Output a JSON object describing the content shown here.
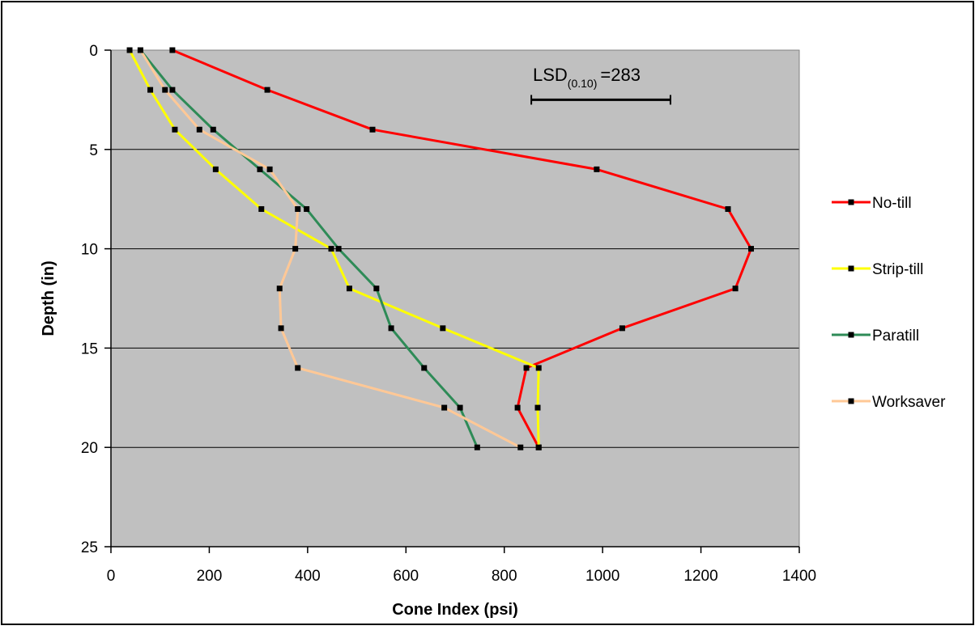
{
  "chart_data": {
    "type": "line",
    "title": "",
    "xlabel": "Cone Index (psi)",
    "ylabel": "Depth (in)",
    "xlim": [
      0,
      1400
    ],
    "ylim": [
      0,
      25
    ],
    "y_inverted": true,
    "x_ticks": [
      0,
      200,
      400,
      600,
      800,
      1000,
      1200,
      1400
    ],
    "y_ticks": [
      0,
      5,
      10,
      15,
      20,
      25
    ],
    "grid": "horizontal",
    "plot_background": "#c0c0c0",
    "legend_position": "right",
    "series": [
      {
        "name": "No-till",
        "color": "#ff0000",
        "points": [
          [
            125,
            0
          ],
          [
            318,
            2
          ],
          [
            532,
            4
          ],
          [
            988,
            6
          ],
          [
            1255,
            8
          ],
          [
            1302,
            10
          ],
          [
            1270,
            12
          ],
          [
            1040,
            14
          ],
          [
            845,
            16
          ],
          [
            827,
            18
          ],
          [
            870,
            20
          ]
        ]
      },
      {
        "name": "Strip-till",
        "color": "#ffff00",
        "points": [
          [
            38,
            0
          ],
          [
            80,
            2
          ],
          [
            130,
            4
          ],
          [
            213,
            6
          ],
          [
            306,
            8
          ],
          [
            448,
            10
          ],
          [
            485,
            12
          ],
          [
            675,
            14
          ],
          [
            870,
            16
          ],
          [
            868,
            18
          ],
          [
            870,
            20
          ]
        ]
      },
      {
        "name": "Paratill",
        "color": "#2e8b57",
        "points": [
          [
            60,
            0
          ],
          [
            125,
            2
          ],
          [
            208,
            4
          ],
          [
            303,
            6
          ],
          [
            398,
            8
          ],
          [
            463,
            10
          ],
          [
            540,
            12
          ],
          [
            570,
            14
          ],
          [
            637,
            16
          ],
          [
            710,
            18
          ],
          [
            745,
            20
          ]
        ]
      },
      {
        "name": "Worksaver",
        "color": "#ffc896",
        "points": [
          [
            60,
            0
          ],
          [
            110,
            2
          ],
          [
            180,
            4
          ],
          [
            323,
            6
          ],
          [
            380,
            8
          ],
          [
            375,
            10
          ],
          [
            343,
            12
          ],
          [
            346,
            14
          ],
          [
            380,
            16
          ],
          [
            678,
            18
          ],
          [
            833,
            20
          ]
        ]
      }
    ],
    "annotations": [
      {
        "label_main": "LSD",
        "label_sub": "(0.10)",
        "label_value": "=283",
        "x_start": 855,
        "x_end": 1138,
        "y": 2.5
      }
    ]
  }
}
